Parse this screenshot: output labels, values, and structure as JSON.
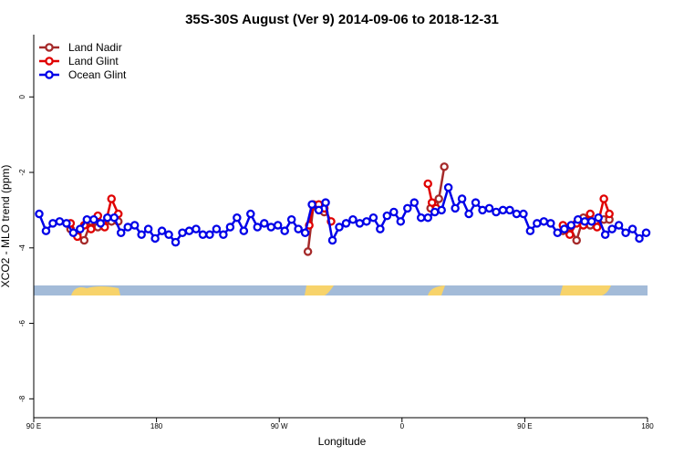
{
  "chart_data": {
    "type": "line",
    "title": "35S-30S August (Ver 9)   2014-09-06 to 2018-12-31",
    "x_label": "Longitude",
    "y_label": "XCO2 - MLO trend (ppm)",
    "xlim": [
      90,
      540
    ],
    "ylim": [
      -8.5,
      1.65
    ],
    "xticks": [
      {
        "value": 90,
        "label": "90 E"
      },
      180,
      {
        "value": 270,
        "label": "90 W"
      },
      {
        "value": 360,
        "label": "0"
      },
      {
        "value": 450,
        "label": "90 E"
      },
      180
    ],
    "yticks": [
      0,
      -2,
      -4,
      -6,
      -8
    ],
    "legend": "top-left",
    "series": [
      {
        "name": "Land Nadir",
        "color": "#a52a2a",
        "x": [
          117,
          122,
          127,
          132,
          137,
          142,
          147,
          152,
          null,
          291,
          295,
          299,
          303,
          null,
          381,
          384,
          387,
          391,
          null,
          478,
          483,
          488,
          493,
          498,
          503,
          508,
          512
        ],
        "values": [
          -3.5,
          -3.65,
          -3.8,
          -3.3,
          -3.45,
          -3.35,
          -3.3,
          -3.3,
          null,
          -4.1,
          -2.9,
          -2.9,
          -3.05,
          null,
          -2.95,
          -2.85,
          -2.7,
          -1.85,
          null,
          -3.55,
          -3.45,
          -3.8,
          -3.2,
          -3.4,
          -3.3,
          -3.25,
          -3.25
        ]
      },
      {
        "name": "Land Glint",
        "color": "#e00000",
        "x": [
          117,
          122,
          127,
          132,
          137,
          142,
          147,
          152,
          null,
          292,
          295,
          299,
          303,
          308,
          null,
          379,
          382,
          385,
          null,
          478,
          483,
          488,
          493,
          498,
          503,
          508,
          512
        ],
        "values": [
          -3.35,
          -3.7,
          -3.4,
          -3.5,
          -3.15,
          -3.45,
          -2.7,
          -3.1,
          null,
          -3.4,
          -2.85,
          -2.85,
          -2.95,
          -3.3,
          null,
          -2.3,
          -2.8,
          -2.95,
          null,
          -3.4,
          -3.65,
          -3.35,
          -3.4,
          -3.1,
          -3.45,
          -2.7,
          -3.1
        ]
      },
      {
        "name": "Ocean Glint",
        "color": "#0000e8",
        "x": [
          94,
          99,
          104,
          109,
          114,
          119,
          124,
          129,
          134,
          139,
          144,
          149,
          154,
          159,
          164,
          169,
          174,
          179,
          184,
          189,
          194,
          199,
          204,
          209,
          214,
          219,
          224,
          229,
          234,
          239,
          244,
          249,
          254,
          259,
          264,
          269,
          274,
          279,
          284,
          289,
          294,
          299,
          304,
          309,
          314,
          319,
          324,
          329,
          334,
          339,
          344,
          349,
          354,
          359,
          364,
          369,
          374,
          379,
          384,
          389,
          394,
          399,
          404,
          409,
          414,
          419,
          424,
          429,
          434,
          439,
          444,
          449,
          454,
          459,
          464,
          469,
          474,
          479,
          484,
          489,
          494,
          499,
          504,
          509,
          514,
          519,
          524,
          529,
          534,
          539
        ],
        "values": [
          -3.1,
          -3.55,
          -3.35,
          -3.3,
          -3.35,
          -3.6,
          -3.5,
          -3.25,
          -3.25,
          -3.35,
          -3.2,
          -3.2,
          -3.6,
          -3.45,
          -3.4,
          -3.65,
          -3.5,
          -3.75,
          -3.55,
          -3.65,
          -3.85,
          -3.6,
          -3.55,
          -3.5,
          -3.65,
          -3.65,
          -3.5,
          -3.65,
          -3.45,
          -3.2,
          -3.55,
          -3.1,
          -3.45,
          -3.35,
          -3.45,
          -3.4,
          -3.55,
          -3.25,
          -3.5,
          -3.6,
          -2.85,
          -3.0,
          -2.8,
          -3.8,
          -3.45,
          -3.35,
          -3.25,
          -3.35,
          -3.3,
          -3.2,
          -3.5,
          -3.15,
          -3.05,
          -3.3,
          -2.95,
          -2.8,
          -3.2,
          -3.2,
          -3.05,
          -3.0,
          -2.4,
          -2.95,
          -2.7,
          -3.1,
          -2.8,
          -3.0,
          -2.95,
          -3.05,
          -3.0,
          -3.0,
          -3.1,
          -3.1,
          -3.55,
          -3.35,
          -3.3,
          -3.35,
          -3.6,
          -3.5,
          -3.4,
          -3.25,
          -3.3,
          -3.3,
          -3.2,
          -3.65,
          -3.5,
          -3.4,
          -3.6,
          -3.5,
          -3.75,
          -3.6
        ]
      }
    ]
  }
}
